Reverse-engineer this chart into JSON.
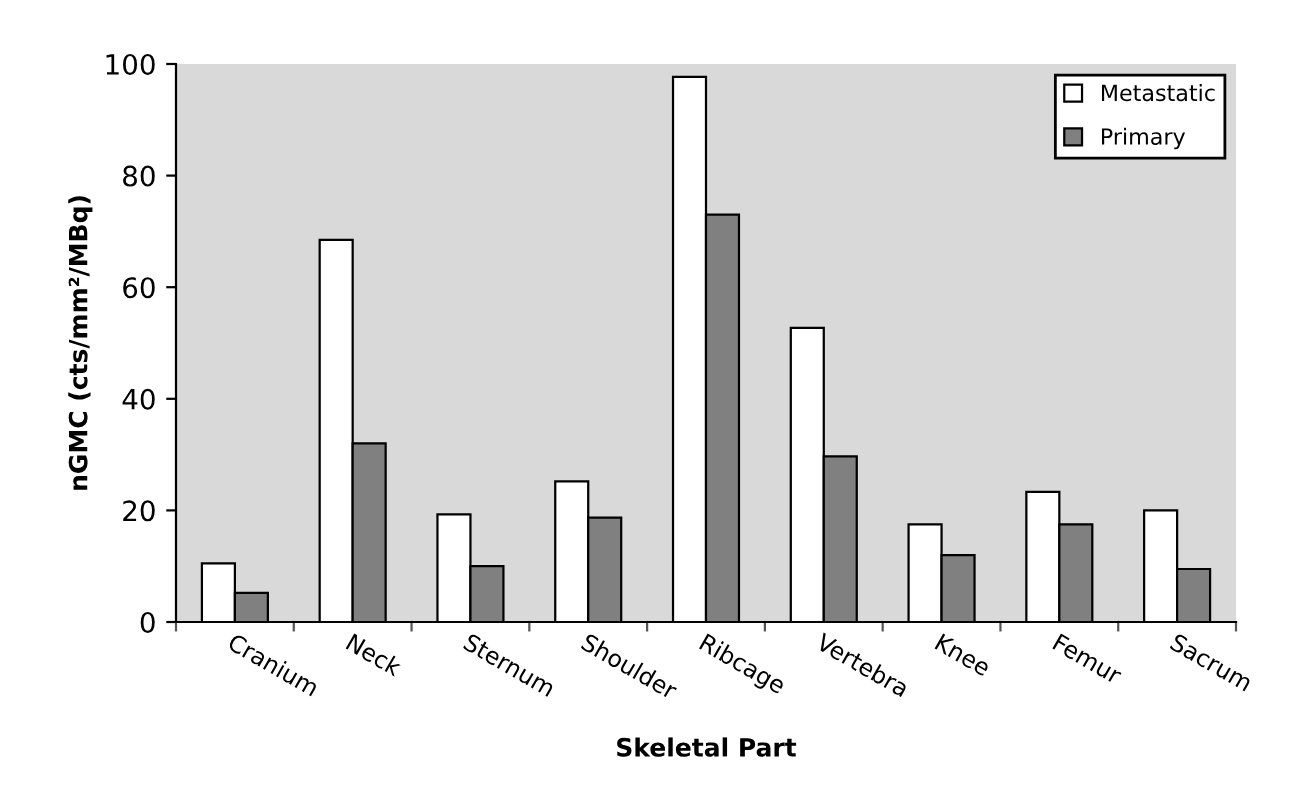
{
  "chart_data": {
    "type": "bar",
    "xlabel": "Skeletal Part",
    "ylabel": "nGMC (cts/mm²/MBq)",
    "categories": [
      "Cranium",
      "Neck",
      "Sternum",
      "Shoulder",
      "Ribcage",
      "Vertebra",
      "Knee",
      "Femur",
      "Sacrum"
    ],
    "series": [
      {
        "name": "Metastatic",
        "color": "#ffffff",
        "values": [
          10.5,
          68.5,
          19.3,
          25.2,
          97.7,
          52.7,
          17.5,
          23.3,
          20
        ]
      },
      {
        "name": "Primary",
        "color": "#808080",
        "values": [
          5.2,
          32,
          10,
          18.7,
          73,
          29.7,
          12,
          17.5,
          9.5
        ]
      }
    ],
    "ylim": [
      0,
      100
    ],
    "yticks": [
      0,
      20,
      40,
      60,
      80,
      100
    ],
    "grid": false,
    "legend": "top right"
  }
}
